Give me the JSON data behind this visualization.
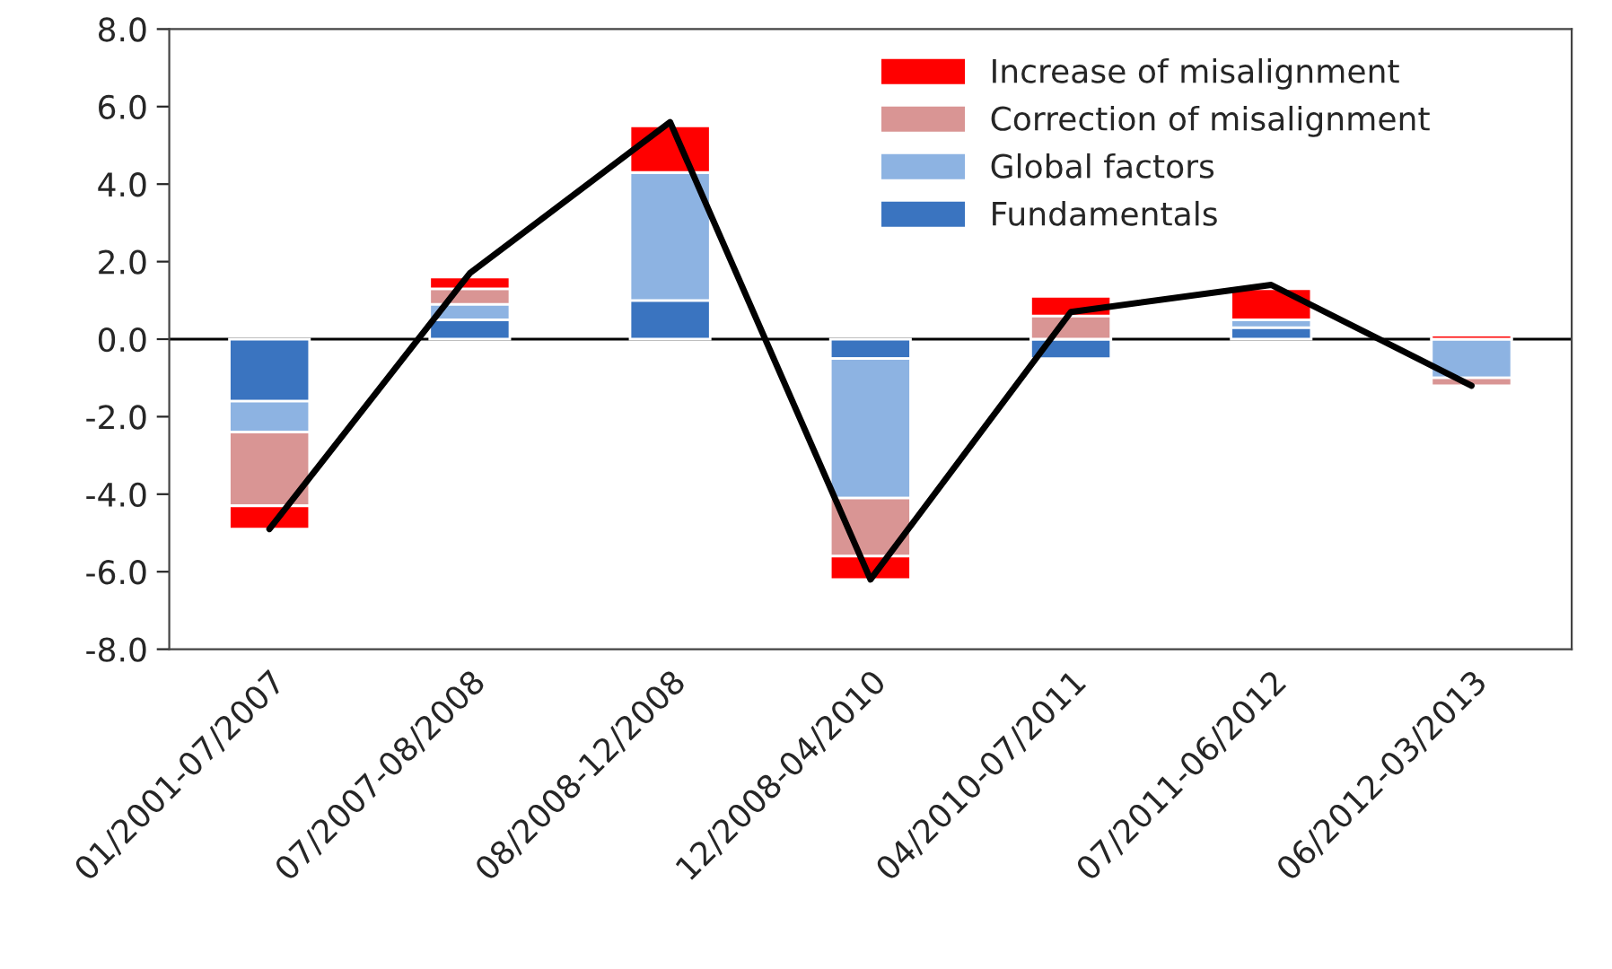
{
  "chart_data": {
    "type": "bar",
    "stacked": true,
    "categories": [
      "01/2001-07/2007",
      "07/2007-08/2008",
      "08/2008-12/2008",
      "12/2008-04/2010",
      "04/2010-07/2011",
      "07/2011-06/2012",
      "06/2012-03/2013"
    ],
    "series": [
      {
        "name": "Fundamentals",
        "color": "#3a74c0",
        "values": [
          -1.6,
          0.5,
          1.0,
          -0.5,
          -0.5,
          0.3,
          null
        ]
      },
      {
        "name": "Global factors",
        "color": "#8db3e2",
        "values": [
          -0.8,
          0.4,
          3.3,
          -3.6,
          null,
          0.2,
          -1.0
        ]
      },
      {
        "name": "Correction of misalignment",
        "color": "#d99594",
        "values": [
          -1.9,
          0.4,
          null,
          -1.5,
          0.6,
          null,
          -0.2
        ]
      },
      {
        "name": "Increase of misalignment",
        "color": "#ff0000",
        "values": [
          -0.6,
          0.3,
          1.2,
          -0.6,
          0.5,
          0.8,
          0.1
        ]
      },
      {
        "type": "line",
        "color": "#000000",
        "values": [
          -4.9,
          1.7,
          5.6,
          -6.2,
          0.7,
          1.4,
          -1.2
        ]
      }
    ],
    "ylim": [
      -8,
      8
    ],
    "yticks": [
      {
        "value": -8,
        "label": "-8.0"
      },
      {
        "value": -6,
        "label": "-6.0"
      },
      {
        "value": -4,
        "label": "-4.0"
      },
      {
        "value": -2,
        "label": "-2.0"
      },
      {
        "value": 0,
        "label": "0.0"
      },
      {
        "value": 2,
        "label": "2.0"
      },
      {
        "value": 4,
        "label": "4.0"
      },
      {
        "value": 6,
        "label": "6.0"
      },
      {
        "value": 8,
        "label": "8.0"
      }
    ],
    "legend": "top right"
  }
}
